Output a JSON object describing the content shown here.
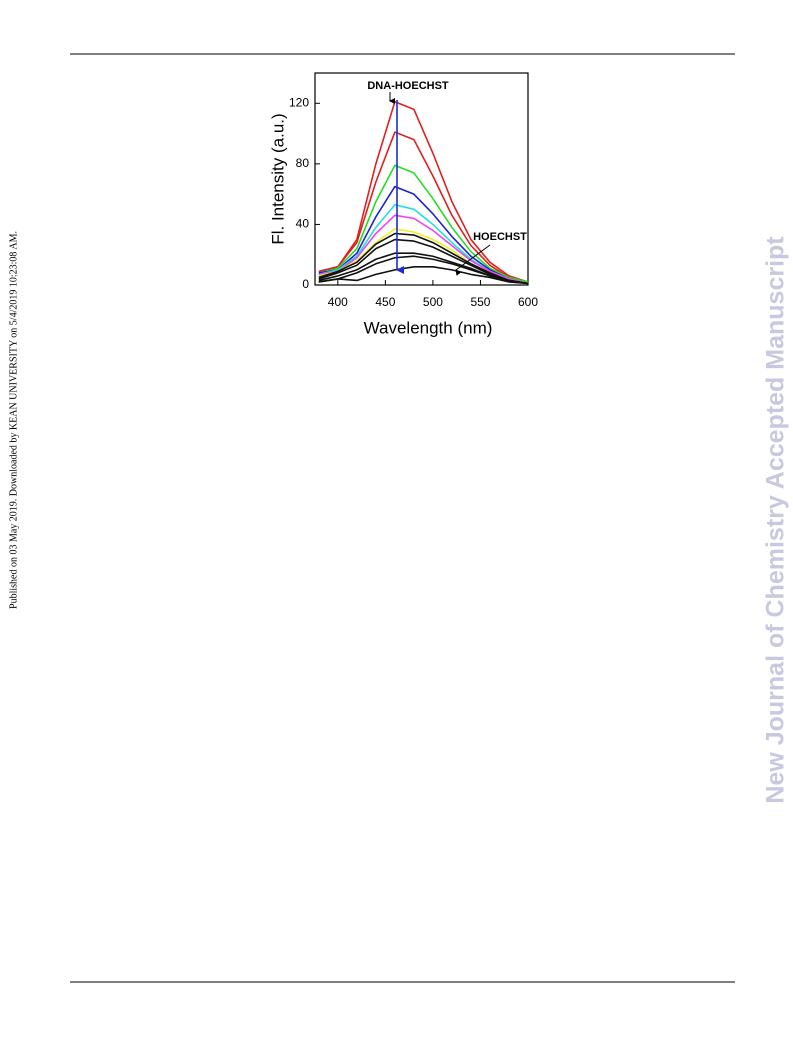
{
  "side_note": "Published on 03 May 2019. Downloaded by KEAN UNIVERSITY on 5/4/2019 10:23:08 AM.",
  "watermark": "New Journal of Chemistry Accepted Manuscript",
  "chart_data": {
    "type": "line",
    "x_label": "Wavelength (nm)",
    "y_label": "Fl. Intensity (a.u.)",
    "annotations": [
      "DNA-HOECHST",
      "HOECHST"
    ],
    "x": [
      380,
      400,
      420,
      440,
      460,
      480,
      500,
      520,
      540,
      560,
      580,
      600
    ],
    "series": [
      {
        "color": "#e02020",
        "values": [
          9,
          12,
          30,
          80,
          121,
          116,
          87,
          55,
          30,
          15,
          6,
          2
        ]
      },
      {
        "color": "#e02020",
        "values": [
          9,
          12,
          28,
          68,
          101,
          96,
          72,
          46,
          26,
          13,
          5,
          2
        ]
      },
      {
        "color": "#22dd22",
        "values": [
          8,
          11,
          24,
          55,
          79,
          74,
          57,
          38,
          22,
          11,
          5,
          2
        ]
      },
      {
        "color": "#2222cc",
        "values": [
          8,
          10,
          21,
          45,
          65,
          60,
          47,
          32,
          19,
          10,
          4,
          1
        ]
      },
      {
        "color": "#22dddd",
        "values": [
          7,
          10,
          19,
          38,
          53,
          50,
          40,
          28,
          17,
          9,
          4,
          1
        ]
      },
      {
        "color": "#ee44ee",
        "values": [
          7,
          9,
          18,
          34,
          46,
          44,
          36,
          26,
          16,
          9,
          4,
          1
        ]
      },
      {
        "color": "#eeee22",
        "values": [
          6,
          9,
          16,
          28,
          37,
          35,
          30,
          23,
          14,
          8,
          3,
          1
        ]
      },
      {
        "color": "#111111",
        "values": [
          5,
          9,
          15,
          27,
          34,
          33,
          28,
          21,
          14,
          8,
          3,
          1
        ]
      },
      {
        "color": "#111111",
        "values": [
          4,
          8,
          13,
          24,
          30,
          29,
          25,
          19,
          13,
          7,
          3,
          1
        ]
      },
      {
        "color": "#111111",
        "values": [
          3,
          6,
          10,
          17,
          21,
          21,
          19,
          15,
          11,
          6,
          3,
          1
        ]
      },
      {
        "color": "#111111",
        "values": [
          2,
          4,
          8,
          14,
          18,
          19,
          17,
          14,
          10,
          6,
          3,
          1
        ]
      },
      {
        "color": "#111111",
        "values": [
          2,
          4,
          3,
          7,
          10,
          12,
          12,
          10,
          7,
          5,
          2,
          1
        ]
      }
    ],
    "xlim": [
      376,
      600
    ],
    "xticks": [
      400,
      450,
      500,
      550,
      600
    ],
    "ylim": [
      0,
      140
    ],
    "yticks": [
      0,
      40,
      80,
      120
    ]
  }
}
